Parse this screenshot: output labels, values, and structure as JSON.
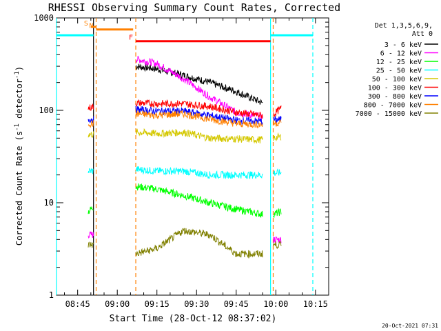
{
  "chart_data": {
    "type": "line",
    "title": "RHESSI Observing Summary Count Rates, Corrected",
    "xlabel": "Start Time (28-Oct-12 08:37:02)",
    "ylabel_main": "Corrected Count Rate (s",
    "ylabel_sup1": "-1",
    "ylabel_mid": " detector",
    "ylabel_sup2": "-1",
    "ylabel_end": ")",
    "y_scale": "log",
    "ylim": [
      1,
      1000
    ],
    "xlim": [
      "08:37",
      "10:20"
    ],
    "x_ticks": [
      "08:45",
      "09:00",
      "09:15",
      "09:30",
      "09:45",
      "10:00",
      "10:15"
    ],
    "y_ticks": [
      "1",
      "10",
      "100",
      "1000"
    ],
    "grid": false,
    "legend_position": "right",
    "legend_header": [
      "Det 1,3,5,6,9,",
      "Att 0"
    ],
    "footer_date": "20-Oct-2021 07:31",
    "markers": [
      {
        "label": "S",
        "start": "08:50",
        "end": "08:52",
        "level": 800,
        "color": "#ff8000"
      },
      {
        "label": "N",
        "start": "08:52",
        "end": "09:06",
        "level": 750,
        "color": "#ff8000"
      },
      {
        "label": "F",
        "start": "09:07",
        "end": "09:58",
        "level": 560,
        "color": "#ff0000"
      }
    ],
    "series": [
      {
        "name": "3 - 6 keV",
        "color": "#000000",
        "segments": [
          {
            "x": [
              "09:07",
              "09:15",
              "09:25",
              "09:35",
              "09:45",
              "09:55"
            ],
            "y": [
              300,
              280,
              240,
              200,
              160,
              120
            ]
          }
        ]
      },
      {
        "name": "6 - 12 keV",
        "color": "#ff00ff",
        "segments": [
          {
            "x": [
              "08:49",
              "08:51"
            ],
            "y": [
              4.5,
              4.5
            ]
          },
          {
            "x": [
              "09:07",
              "09:15",
              "09:25",
              "09:35",
              "09:45",
              "09:55"
            ],
            "y": [
              360,
              320,
              220,
              140,
              95,
              85
            ]
          },
          {
            "x": [
              "09:59",
              "10:02"
            ],
            "y": [
              4,
              4
            ]
          }
        ]
      },
      {
        "name": "12 - 25 keV",
        "color": "#00ff00",
        "segments": [
          {
            "x": [
              "08:49",
              "08:51"
            ],
            "y": [
              8,
              9
            ]
          },
          {
            "x": [
              "09:07",
              "09:15",
              "09:25",
              "09:35",
              "09:45",
              "09:55"
            ],
            "y": [
              15,
              14,
              12,
              10,
              8.5,
              7.5
            ]
          },
          {
            "x": [
              "09:59",
              "10:02"
            ],
            "y": [
              7.5,
              8
            ]
          }
        ]
      },
      {
        "name": "25 - 50 keV",
        "color": "#00ffff",
        "segments": [
          {
            "x": [
              "08:49",
              "08:51"
            ],
            "y": [
              22,
              22
            ]
          },
          {
            "x": [
              "09:07",
              "09:15",
              "09:25",
              "09:35",
              "09:45",
              "09:55"
            ],
            "y": [
              23,
              22,
              22,
              20,
              20,
              20
            ]
          },
          {
            "x": [
              "09:59",
              "10:02"
            ],
            "y": [
              21,
              21
            ]
          }
        ]
      },
      {
        "name": "50 - 100 keV",
        "color": "#d4c800",
        "segments": [
          {
            "x": [
              "08:49",
              "08:51"
            ],
            "y": [
              55,
              55
            ]
          },
          {
            "x": [
              "09:07",
              "09:15",
              "09:25",
              "09:35",
              "09:45",
              "09:55"
            ],
            "y": [
              58,
              56,
              58,
              50,
              49,
              48
            ]
          },
          {
            "x": [
              "09:59",
              "10:02"
            ],
            "y": [
              50,
              52
            ]
          }
        ]
      },
      {
        "name": "100 - 300 keV",
        "color": "#ff0000",
        "segments": [
          {
            "x": [
              "08:49",
              "08:51"
            ],
            "y": [
              105,
              110
            ]
          },
          {
            "x": [
              "09:07",
              "09:15",
              "09:25",
              "09:35",
              "09:45",
              "09:55"
            ],
            "y": [
              120,
              118,
              118,
              110,
              95,
              88
            ]
          },
          {
            "x": [
              "09:59",
              "10:02"
            ],
            "y": [
              90,
              105
            ]
          }
        ]
      },
      {
        "name": "300 - 800 keV",
        "color": "#0000ff",
        "segments": [
          {
            "x": [
              "08:49",
              "08:51"
            ],
            "y": [
              80,
              80
            ]
          },
          {
            "x": [
              "09:07",
              "09:15",
              "09:25",
              "09:35",
              "09:45",
              "09:55"
            ],
            "y": [
              102,
              98,
              98,
              88,
              78,
              76
            ]
          },
          {
            "x": [
              "09:59",
              "10:02"
            ],
            "y": [
              78,
              80
            ]
          }
        ]
      },
      {
        "name": "800 - 7000 keV",
        "color": "#ff8000",
        "segments": [
          {
            "x": [
              "08:49",
              "08:51"
            ],
            "y": [
              72,
              72
            ]
          },
          {
            "x": [
              "09:07",
              "09:15",
              "09:25",
              "09:35",
              "09:45",
              "09:55"
            ],
            "y": [
              92,
              88,
              92,
              80,
              72,
              70
            ]
          },
          {
            "x": [
              "09:59",
              "10:02"
            ],
            "y": [
              72,
              74
            ]
          }
        ]
      },
      {
        "name": "7000 - 15000 keV",
        "color": "#808000",
        "segments": [
          {
            "x": [
              "08:49",
              "08:51"
            ],
            "y": [
              3.5,
              3.5
            ]
          },
          {
            "x": [
              "09:07",
              "09:15",
              "09:25",
              "09:35",
              "09:45",
              "09:55"
            ],
            "y": [
              2.8,
              3.2,
              5,
              4.5,
              2.8,
              2.8
            ]
          },
          {
            "x": [
              "09:59",
              "10:02"
            ],
            "y": [
              3.5,
              3.5
            ]
          }
        ]
      }
    ],
    "guide_lines": [
      {
        "x": "08:37",
        "color": "#00ffff",
        "style": "solid"
      },
      {
        "x": "08:51",
        "color": "#000000",
        "style": "solid"
      },
      {
        "x": "08:52",
        "color": "#ff8000",
        "style": "dash"
      },
      {
        "x": "09:07",
        "color": "#ff8000",
        "style": "dash"
      },
      {
        "x": "09:58",
        "color": "#00ffff",
        "style": "solid"
      },
      {
        "x": "09:59",
        "color": "#ff8000",
        "style": "dash"
      },
      {
        "x": "10:14",
        "color": "#00ffff",
        "style": "dash"
      }
    ],
    "top_bars": [
      {
        "start": "08:37",
        "end": "08:51",
        "level": 650,
        "color": "#00ffff"
      },
      {
        "start": "09:58",
        "end": "10:14",
        "level": 650,
        "color": "#00ffff"
      }
    ]
  }
}
